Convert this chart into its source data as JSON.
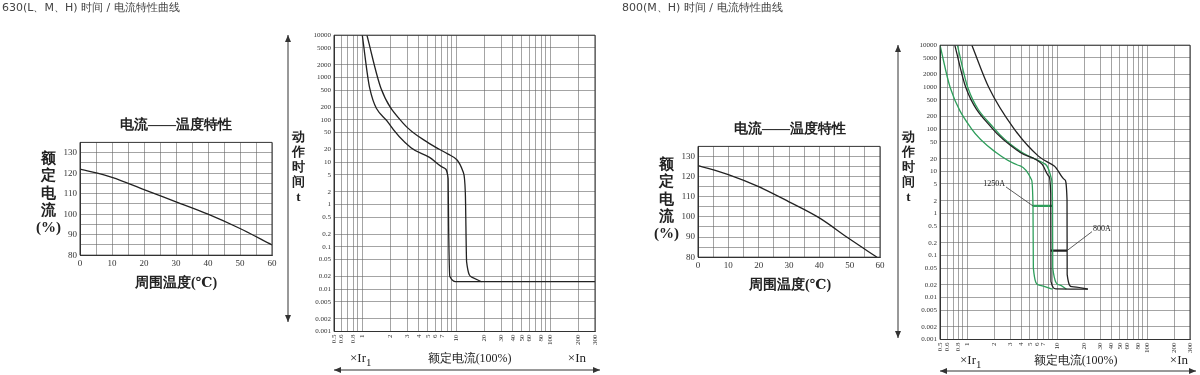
{
  "chart_data": [
    {
      "type": "line",
      "title": "电流——温度特性",
      "xlabel": "周围温度(℃)",
      "ylabel": "额定电流(%)",
      "annotations": [
        "630(L、M、H) 时间 / 电流特性曲线"
      ],
      "series": [
        {
          "color": "#222222",
          "x": [
            0,
            10,
            20,
            30,
            40,
            50,
            60
          ],
          "values": [
            122,
            118,
            112,
            106,
            100,
            93,
            85
          ]
        }
      ],
      "xlim": [
        0,
        60
      ],
      "xticks": [
        0,
        {
          "value": 5,
          "label": null
        },
        10,
        {
          "value": 15,
          "label": null
        },
        20,
        {
          "value": 25,
          "label": null
        },
        30,
        {
          "value": 35,
          "label": null
        },
        40,
        {
          "value": 45,
          "label": null
        },
        50,
        {
          "value": 55,
          "label": null
        },
        60
      ],
      "ylim": [
        80,
        135
      ],
      "yticks": [
        80,
        {
          "value": 85,
          "label": null
        },
        90,
        {
          "value": 95,
          "label": null
        },
        100,
        {
          "value": 105,
          "label": null
        },
        110,
        {
          "value": 115,
          "label": null
        },
        120,
        {
          "value": 125,
          "label": null
        },
        130
      ],
      "grid": true,
      "marker": "none"
    },
    {
      "type": "line",
      "log": "xy",
      "xlabel": "额定电流(100%)",
      "ylabel": "动作时间t",
      "annotations": [
        "×Ir$_{1}$",
        "×In"
      ],
      "series": [
        {
          "color": "#222222",
          "x": [
            1,
            1.2,
            1.9,
            3.3,
            5.2,
            7.5,
            8.2,
            8.3,
            8.55,
            10.3,
            300
          ],
          "values": [
            10000,
            560,
            85,
            22,
            13,
            7.2,
            4.1,
            0.29,
            0.02,
            0.015,
            0.015
          ]
        },
        {
          "color": "#222222",
          "x": [
            1.12,
            1.58,
            2.7,
            5.2,
            8.2,
            11.8,
            12.5,
            12.9,
            14.8,
            18.6
          ],
          "values": [
            10000,
            560,
            85,
            27.5,
            15.5,
            6,
            1.9,
            0.044,
            0.019,
            0.015
          ]
        }
      ],
      "xlim": [
        0.5,
        300
      ],
      "xticks": [
        0.5,
        0.6,
        {
          "value": 0.7,
          "label": null
        },
        0.8,
        {
          "value": 0.9,
          "label": null
        },
        1,
        2,
        3,
        4,
        5,
        6,
        7,
        {
          "value": 8,
          "label": null
        },
        {
          "value": 9,
          "label": null
        },
        10,
        20,
        30,
        40,
        50,
        60,
        {
          "value": 70,
          "label": null
        },
        80,
        {
          "value": 90,
          "label": null
        },
        100,
        200,
        300
      ],
      "ylim": [
        0.001,
        10000
      ],
      "yticks": [
        0.001,
        0.002,
        0.005,
        0.01,
        0.02,
        0.05,
        0.1,
        0.2,
        0.5,
        1,
        2,
        5,
        10,
        20,
        50,
        100,
        200,
        500,
        1000,
        2000,
        5000,
        10000
      ],
      "grid": true,
      "marker": "none"
    },
    {
      "type": "line",
      "title": "电流——温度特性",
      "xlabel": "周围温度(℃)",
      "ylabel": "额定电流(%)",
      "annotations": [
        "800(M、H) 时间 / 电流特性曲线"
      ],
      "series": [
        {
          "color": "#222222",
          "x": [
            0,
            10,
            20,
            30,
            40,
            50,
            59
          ],
          "values": [
            125.5,
            121,
            115,
            107.5,
            99.5,
            89,
            80
          ]
        }
      ],
      "xlim": [
        0,
        60
      ],
      "xticks": [
        0,
        {
          "value": 5,
          "label": null
        },
        10,
        {
          "value": 15,
          "label": null
        },
        20,
        {
          "value": 25,
          "label": null
        },
        30,
        {
          "value": 35,
          "label": null
        },
        40,
        {
          "value": 45,
          "label": null
        },
        50,
        {
          "value": 55,
          "label": null
        },
        60
      ],
      "ylim": [
        80,
        135
      ],
      "yticks": [
        80,
        {
          "value": 85,
          "label": null
        },
        90,
        {
          "value": 95,
          "label": null
        },
        100,
        {
          "value": 105,
          "label": null
        },
        110,
        {
          "value": 115,
          "label": null
        },
        120,
        {
          "value": 125,
          "label": null
        },
        130
      ],
      "grid": true,
      "marker": "none"
    },
    {
      "type": "line",
      "log": "xy",
      "xlabel": "额定电流(100%)",
      "ylabel": "动作时间t",
      "annotations": [
        {
          "text": "1250A",
          "x": 5.4,
          "y": 1.5
        },
        {
          "text": "800A",
          "x": 12.9,
          "y": 0.13
        },
        "×Ir$_{1}$",
        "×In"
      ],
      "series": [
        {
          "color": "#2e9e5b",
          "x": [
            0.5,
            0.65,
            1.11,
            2.1,
            3.9,
            5.2,
            5.4,
            5.45,
            6.2,
            8.9
          ],
          "values": [
            10000,
            970,
            105,
            28,
            13.4,
            6.3,
            1.44,
            0.05,
            0.02,
            0.0158
          ]
        },
        {
          "color": "#222222",
          "x": [
            0.73,
            0.97,
            1.9,
            3.9,
            6.8,
            8.1,
            8.5,
            8.55,
            9.7,
            22
          ],
          "values": [
            10000,
            970,
            105,
            28,
            14.8,
            7.7,
            3,
            0.024,
            0.016,
            0.0158
          ]
        },
        {
          "color": "#2e9e5b",
          "x": [
            0.78,
            1.02,
            2,
            4.1,
            7.4,
            8.7,
            8.9,
            8.95,
            10.6,
            12.7
          ],
          "values": [
            10000,
            970,
            105,
            28,
            14.8,
            6.3,
            1.44,
            0.05,
            0.02,
            0.0158
          ]
        },
        {
          "color": "#222222",
          "x": [
            1.13,
            1.75,
            3.3,
            6.2,
            9.3,
            12.2,
            12.9,
            12.95,
            14.6,
            22
          ],
          "values": [
            10000,
            970,
            105,
            23,
            13.4,
            6.3,
            2.1,
            0.035,
            0.018,
            0.0158
          ]
        },
        {
          "color": "#2e9e5b",
          "x": [
            5.4,
            8.9
          ],
          "values": [
            1.5,
            1.5
          ]
        },
        {
          "color": "#222222",
          "x": [
            8.5,
            12.9
          ],
          "values": [
            0.13,
            0.13
          ]
        }
      ],
      "xlim": [
        0.5,
        300
      ],
      "xticks": [
        0.5,
        0.6,
        {
          "value": 0.7,
          "label": null
        },
        0.8,
        {
          "value": 0.9,
          "label": null
        },
        1,
        2,
        3,
        4,
        5,
        6,
        7,
        {
          "value": 8,
          "label": null
        },
        {
          "value": 9,
          "label": null
        },
        10,
        20,
        30,
        40,
        50,
        60,
        {
          "value": 70,
          "label": null
        },
        80,
        {
          "value": 90,
          "label": null
        },
        100,
        200,
        300
      ],
      "ylim": [
        0.001,
        10000
      ],
      "yticks": [
        0.001,
        0.002,
        0.005,
        0.01,
        0.02,
        0.05,
        0.1,
        0.2,
        0.5,
        1,
        2,
        5,
        10,
        20,
        50,
        100,
        200,
        500,
        1000,
        2000,
        5000,
        10000
      ],
      "grid": true,
      "marker": "none"
    }
  ]
}
